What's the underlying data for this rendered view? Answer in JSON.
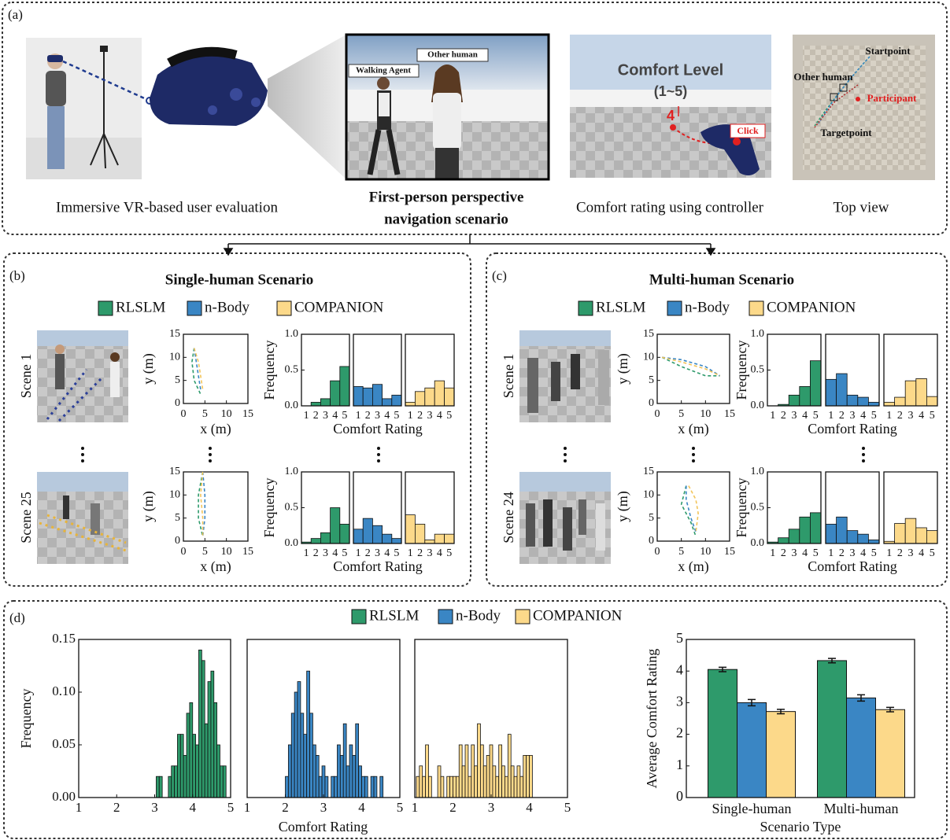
{
  "panel_a": {
    "label": "(a)",
    "scene_labels": {
      "walking_agent": "Walking Agent",
      "other_human": "Other human"
    },
    "comfort": {
      "title": "Comfort Level",
      "range": "(1~5)",
      "rating": "4",
      "click": "Click"
    },
    "top_view": {
      "start": "Startpoint",
      "other": "Other human",
      "participant": "Participant",
      "target": "Targetpoint"
    },
    "captions": {
      "vr": "Immersive VR-based user evaluation",
      "first_person": [
        "First-person perspective",
        "navigation scenario"
      ],
      "comfort": "Comfort rating using controller",
      "top_view": "Top view"
    }
  },
  "panel_b": {
    "label": "(b)",
    "title": "Single-human Scenario",
    "scenes": [
      "Scene 1",
      "Scene 25"
    ]
  },
  "panel_c": {
    "label": "(c)",
    "title": "Multi-human Scenario",
    "scenes": [
      "Scene 1",
      "Scene 24"
    ]
  },
  "panel_d": {
    "label": "(d)"
  },
  "chart_data": [
    {
      "type": "line",
      "linestyle": "dashed",
      "xlabel": "x (m)",
      "ylabel": "y (m)",
      "xlim": [
        0,
        15
      ],
      "ylim": [
        0,
        15
      ],
      "xticks": [
        0,
        5,
        10,
        15
      ],
      "yticks": [
        0,
        5,
        10,
        15
      ],
      "series": [
        {
          "color": "#2e9a6b",
          "x": [
            2.5,
            2,
            2.5,
            4
          ],
          "values": [
            12,
            9,
            5,
            2
          ]
        },
        {
          "color": "#3a86c4",
          "x": [
            2.5,
            3,
            3.5,
            4
          ],
          "values": [
            12,
            9,
            6,
            3
          ]
        },
        {
          "color": "#f2c45a",
          "x": [
            2.5,
            3.5,
            4,
            4.5
          ],
          "values": [
            12,
            9,
            6,
            3
          ]
        }
      ]
    },
    {
      "type": "line",
      "linestyle": "dashed",
      "xlabel": "x (m)",
      "ylabel": "y (m)",
      "xlim": [
        0,
        15
      ],
      "ylim": [
        0,
        15
      ],
      "xticks": [
        0,
        5,
        10,
        15
      ],
      "yticks": [
        0,
        5,
        10,
        15
      ],
      "series": [
        {
          "color": "#2e9a6b",
          "x": [
            4.5,
            3.5,
            3.5,
            4.5
          ],
          "values": [
            15,
            10,
            5,
            1
          ]
        },
        {
          "color": "#3a86c4",
          "x": [
            4.5,
            5,
            5,
            4.5
          ],
          "values": [
            15,
            10,
            5,
            1
          ]
        },
        {
          "color": "#f2c45a",
          "x": [
            4.5,
            4,
            4.5,
            4.5
          ],
          "values": [
            15,
            10,
            5,
            1
          ]
        }
      ]
    },
    {
      "type": "line",
      "linestyle": "dashed",
      "xlabel": "x (m)",
      "ylabel": "y (m)",
      "xlim": [
        0,
        15
      ],
      "ylim": [
        0,
        15
      ],
      "xticks": [
        0,
        5,
        10,
        15
      ],
      "yticks": [
        0,
        5,
        10,
        15
      ],
      "series": [
        {
          "color": "#2e9a6b",
          "x": [
            1,
            5,
            10,
            13
          ],
          "values": [
            10,
            8,
            6,
            6
          ]
        },
        {
          "color": "#3a86c4",
          "x": [
            1,
            5,
            10,
            13
          ],
          "values": [
            10,
            9.5,
            8,
            6
          ]
        },
        {
          "color": "#f2c45a",
          "x": [
            1,
            5,
            10,
            13
          ],
          "values": [
            10,
            9,
            7.5,
            6
          ]
        }
      ]
    },
    {
      "type": "line",
      "linestyle": "dashed",
      "xlabel": "x (m)",
      "ylabel": "y (m)",
      "xlim": [
        0,
        15
      ],
      "ylim": [
        0,
        15
      ],
      "xticks": [
        0,
        5,
        10,
        15
      ],
      "yticks": [
        0,
        5,
        10,
        15
      ],
      "series": [
        {
          "color": "#2e9a6b",
          "x": [
            6,
            5,
            7,
            8
          ],
          "values": [
            12,
            8,
            4,
            1
          ]
        },
        {
          "color": "#3a86c4",
          "x": [
            6,
            6,
            7,
            8
          ],
          "values": [
            12,
            9,
            5,
            2
          ]
        },
        {
          "color": "#f2c45a",
          "x": [
            6.5,
            8,
            8.5,
            8
          ],
          "values": [
            12,
            9,
            6,
            2
          ]
        }
      ]
    },
    {
      "type": "bar",
      "facets": true,
      "xlabel": "Comfort Rating",
      "ylabel": "Frequency",
      "categories": [
        1,
        2,
        3,
        4,
        5
      ],
      "ylim": [
        0,
        1
      ],
      "yticks": [
        {
          "value": 0,
          "label": "0.0"
        },
        0.5,
        {
          "value": 1,
          "label": "1.0"
        }
      ],
      "series": [
        {
          "name": "RLSLM",
          "color": "#2e9a6b",
          "values": [
            0,
            0.05,
            0.1,
            0.35,
            0.55
          ]
        },
        {
          "name": "n-Body",
          "color": "#3a86c4",
          "values": [
            0.27,
            0.25,
            0.3,
            0.1,
            0.15
          ]
        },
        {
          "name": "COMPANION",
          "color": "#fcd98a",
          "values": [
            0.05,
            0.2,
            0.25,
            0.35,
            0.25
          ]
        }
      ]
    },
    {
      "type": "bar",
      "facets": true,
      "xlabel": "Comfort Rating",
      "ylabel": "Frequency",
      "categories": [
        1,
        2,
        3,
        4,
        5
      ],
      "ylim": [
        0,
        1
      ],
      "yticks": [
        {
          "value": 0,
          "label": "0.0"
        },
        0.5,
        {
          "value": 1,
          "label": "1.0"
        }
      ],
      "series": [
        {
          "color": "#2e9a6b",
          "values": [
            0.02,
            0.07,
            0.15,
            0.5,
            0.27
          ]
        },
        {
          "color": "#3a86c4",
          "values": [
            0.2,
            0.35,
            0.25,
            0.13,
            0.07
          ]
        },
        {
          "color": "#fcd98a",
          "values": [
            0.4,
            0.27,
            0.05,
            0.13,
            0.13
          ]
        }
      ]
    },
    {
      "type": "bar",
      "facets": true,
      "xlabel": "Comfort Rating",
      "ylabel": "Frequency",
      "categories": [
        1,
        2,
        3,
        4,
        5
      ],
      "ylim": [
        0,
        1
      ],
      "yticks": [
        {
          "value": 0,
          "label": "0.0"
        },
        0.5,
        {
          "value": 1,
          "label": "1.0"
        }
      ],
      "series": [
        {
          "name": "RLSLM",
          "color": "#2e9a6b",
          "values": [
            0,
            0.02,
            0.15,
            0.27,
            0.63
          ]
        },
        {
          "name": "n-Body",
          "color": "#3a86c4",
          "values": [
            0.37,
            0.45,
            0.15,
            0.12,
            0.05
          ]
        },
        {
          "name": "COMPANION",
          "color": "#fcd98a",
          "values": [
            0.05,
            0.12,
            0.35,
            0.38,
            0.13
          ]
        }
      ]
    },
    {
      "type": "bar",
      "facets": true,
      "xlabel": "Comfort Rating",
      "ylabel": "Frequency",
      "categories": [
        1,
        2,
        3,
        4,
        5
      ],
      "ylim": [
        0,
        1
      ],
      "yticks": [
        {
          "value": 0,
          "label": "0.0"
        },
        0.5,
        {
          "value": 1,
          "label": "1.0"
        }
      ],
      "series": [
        {
          "color": "#2e9a6b",
          "values": [
            0.02,
            0.08,
            0.2,
            0.37,
            0.43
          ]
        },
        {
          "color": "#3a86c4",
          "values": [
            0.27,
            0.37,
            0.18,
            0.13,
            0.05
          ]
        },
        {
          "color": "#fcd98a",
          "values": [
            0.03,
            0.28,
            0.35,
            0.22,
            0.18
          ]
        }
      ]
    },
    {
      "type": "histogram",
      "ylabel": "Frequency",
      "color": "#2e9a6b",
      "xlim": [
        1,
        5
      ],
      "xticks": [
        1,
        2,
        3,
        4,
        5
      ],
      "ylim": [
        0,
        0.15
      ],
      "yticks": [
        {
          "value": 0,
          "label": "0.00"
        },
        0.05,
        {
          "value": 0.1,
          "label": "0.10"
        },
        0.15
      ],
      "bins": [
        3.04,
        3.12,
        3.2,
        3.28,
        3.36,
        3.44,
        3.52,
        3.6,
        3.68,
        3.76,
        3.84,
        3.92,
        4.0,
        4.08,
        4.16,
        4.24,
        4.32,
        4.4,
        4.48,
        4.56,
        4.64,
        4.72,
        4.8,
        4.88
      ],
      "values": [
        0.02,
        0.02,
        0,
        0,
        0.02,
        0.03,
        0.03,
        0.06,
        0.06,
        0.04,
        0.08,
        0.09,
        0.06,
        0.05,
        0.14,
        0.13,
        0.07,
        0.11,
        0.12,
        0.09,
        0.05,
        0.03,
        0.03
      ]
    },
    {
      "type": "histogram",
      "xlabel": "Comfort Rating",
      "color": "#3a86c4",
      "xlim": [
        1,
        5
      ],
      "xticks": [
        1,
        2,
        3,
        4,
        5
      ],
      "ylim": [
        0,
        0.15
      ],
      "bins": [
        2.0,
        2.08,
        2.16,
        2.24,
        2.32,
        2.4,
        2.48,
        2.56,
        2.64,
        2.72,
        2.8,
        2.88,
        2.96,
        3.04,
        3.12,
        3.2,
        3.28,
        3.36,
        3.44,
        3.52,
        3.6,
        3.68,
        3.76,
        3.84,
        3.92,
        4.0,
        4.08,
        4.16,
        4.24,
        4.32,
        4.4,
        4.48,
        4.56
      ],
      "values": [
        0.02,
        0.05,
        0.08,
        0.1,
        0.11,
        0.08,
        0.06,
        0.12,
        0.08,
        0.05,
        0.04,
        0.02,
        0.03,
        0.02,
        0,
        0.02,
        0.02,
        0.05,
        0.04,
        0.07,
        0.03,
        0.05,
        0.04,
        0.07,
        0.03,
        0.02,
        0.02,
        0,
        0.02,
        0.02,
        0,
        0.02
      ]
    },
    {
      "type": "histogram",
      "color": "#fcd98a",
      "xlim": [
        1,
        5
      ],
      "xticks": [
        1,
        2,
        3,
        4,
        5
      ],
      "ylim": [
        0,
        0.15
      ],
      "bins": [
        1.04,
        1.12,
        1.2,
        1.28,
        1.36,
        1.44,
        1.52,
        1.6,
        1.68,
        1.76,
        1.84,
        1.92,
        2.0,
        2.08,
        2.16,
        2.24,
        2.32,
        2.4,
        2.48,
        2.56,
        2.64,
        2.72,
        2.8,
        2.88,
        2.96,
        3.04,
        3.12,
        3.2,
        3.28,
        3.36,
        3.44,
        3.52,
        3.6,
        3.68,
        3.76,
        3.84,
        3.92,
        4.0,
        4.08
      ],
      "values": [
        0.02,
        0.03,
        0.02,
        0.05,
        0.02,
        0,
        0,
        0.03,
        0.02,
        0,
        0.02,
        0.02,
        0.02,
        0.02,
        0.05,
        0.03,
        0.05,
        0.02,
        0.05,
        0.03,
        0.07,
        0.05,
        0.03,
        0.04,
        0.05,
        0.03,
        0.02,
        0.05,
        0.03,
        0.02,
        0.06,
        0.03,
        0.02,
        0.03,
        0.02,
        0.04,
        0.04,
        0.04
      ]
    },
    {
      "type": "bar",
      "xlabel": "Scenario Type",
      "ylabel": "Average Comfort Rating",
      "categories": [
        "Single-human",
        "Multi-human"
      ],
      "ylim": [
        0,
        5
      ],
      "yticks": [
        0,
        1,
        2,
        3,
        4,
        5
      ],
      "series": [
        {
          "name": "RLSLM",
          "color": "#2e9a6b",
          "values": [
            4.05,
            4.33
          ],
          "errors": [
            0.07,
            0.07
          ]
        },
        {
          "name": "n-Body",
          "color": "#3a86c4",
          "values": [
            3.0,
            3.15
          ],
          "errors": [
            0.1,
            0.1
          ]
        },
        {
          "name": "COMPANION",
          "color": "#fcd98a",
          "values": [
            2.72,
            2.78
          ],
          "errors": [
            0.07,
            0.07
          ]
        }
      ]
    }
  ]
}
